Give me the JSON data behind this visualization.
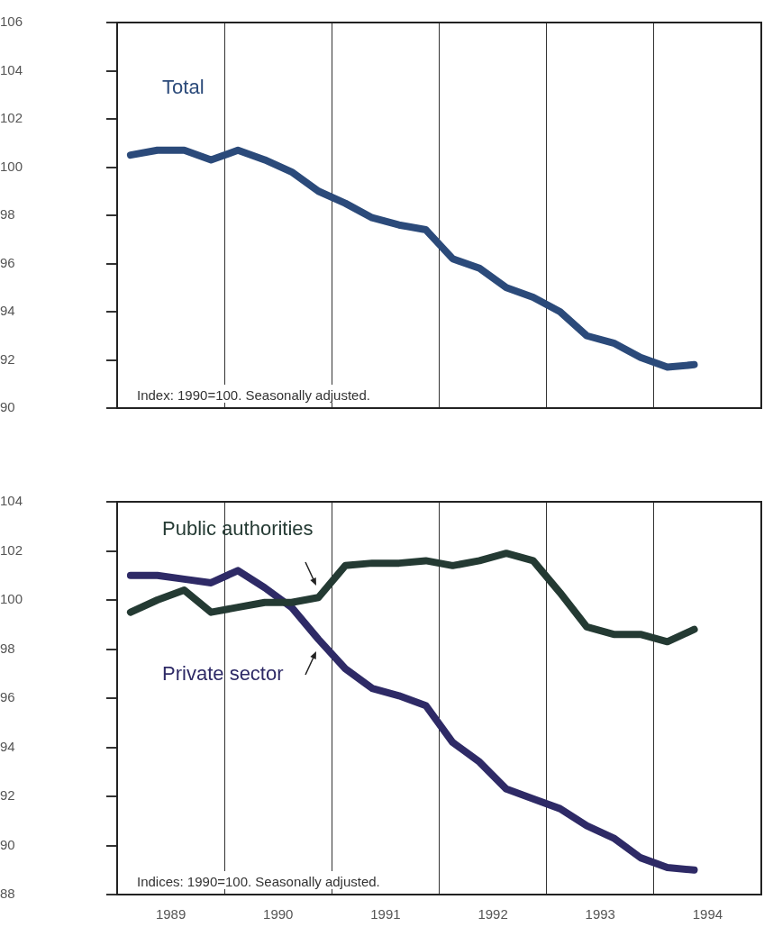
{
  "chart_data": [
    {
      "type": "line",
      "x": [
        1989.125,
        1989.375,
        1989.625,
        1989.875,
        1990.125,
        1990.375,
        1990.625,
        1990.875,
        1991.125,
        1991.375,
        1991.625,
        1991.875,
        1992.125,
        1992.375,
        1992.625,
        1992.875,
        1993.125,
        1993.375,
        1993.625,
        1993.875,
        1994.125,
        1994.375
      ],
      "series": [
        {
          "name": "Total",
          "color": "#2b4a7a",
          "values": [
            100.5,
            100.7,
            100.7,
            100.3,
            100.7,
            100.3,
            99.8,
            99.0,
            98.5,
            97.9,
            97.6,
            97.4,
            96.2,
            95.8,
            95.0,
            94.6,
            94.0,
            93.0,
            92.7,
            92.1,
            91.7,
            91.8
          ]
        }
      ],
      "xlim": [
        1989,
        1995
      ],
      "xticks": [
        {
          "value": 1990,
          "label": null
        },
        {
          "value": 1991,
          "label": null
        },
        {
          "value": 1992,
          "label": null
        },
        {
          "value": 1993,
          "label": null
        },
        {
          "value": 1994,
          "label": null
        }
      ],
      "ylim": [
        90,
        106
      ],
      "yticks": [
        90,
        92,
        94,
        96,
        98,
        100,
        102,
        104,
        106
      ],
      "grid": "x",
      "tick_labels": "y",
      "annotations": [
        "Index: 1990=100. Seasonally adjusted."
      ]
    },
    {
      "type": "line",
      "x": [
        1989.125,
        1989.375,
        1989.625,
        1989.875,
        1990.125,
        1990.375,
        1990.625,
        1990.875,
        1991.125,
        1991.375,
        1991.625,
        1991.875,
        1992.125,
        1992.375,
        1992.625,
        1992.875,
        1993.125,
        1993.375,
        1993.625,
        1993.875,
        1994.125,
        1994.375
      ],
      "series": [
        {
          "name": "Public authorities",
          "color": "#243a33",
          "values": [
            99.5,
            100.0,
            100.4,
            99.5,
            99.7,
            99.9,
            99.9,
            100.1,
            101.4,
            101.5,
            101.5,
            101.6,
            101.4,
            101.6,
            101.9,
            101.6,
            100.3,
            98.9,
            98.6,
            98.6,
            98.3,
            98.8
          ]
        },
        {
          "name": "Private sector",
          "color": "#2e2a66",
          "values": [
            101.0,
            101.0,
            100.85,
            100.7,
            101.2,
            100.5,
            99.7,
            98.4,
            97.2,
            96.4,
            96.1,
            95.7,
            94.2,
            93.4,
            92.3,
            91.9,
            91.5,
            90.8,
            90.3,
            89.5,
            89.1,
            89.0
          ]
        }
      ],
      "xlim": [
        1989,
        1995
      ],
      "xticks": [
        {
          "value": 1990,
          "label": null
        },
        {
          "value": 1991,
          "label": null
        },
        {
          "value": 1992,
          "label": null
        },
        {
          "value": 1993,
          "label": null
        },
        {
          "value": 1994,
          "label": null
        },
        {
          "value": 1989.5,
          "label": "1989"
        },
        {
          "value": 1990.5,
          "label": "1990"
        },
        {
          "value": 1991.5,
          "label": "1991"
        },
        {
          "value": 1992.5,
          "label": "1992"
        },
        {
          "value": 1993.5,
          "label": "1993"
        },
        {
          "value": 1994.5,
          "label": "1994"
        }
      ],
      "ylim": [
        88,
        104
      ],
      "yticks": [
        88,
        90,
        92,
        94,
        96,
        98,
        100,
        102,
        104
      ],
      "grid": "x",
      "annotations": [
        "Indices: 1990=100. Seasonally adjusted."
      ]
    }
  ]
}
